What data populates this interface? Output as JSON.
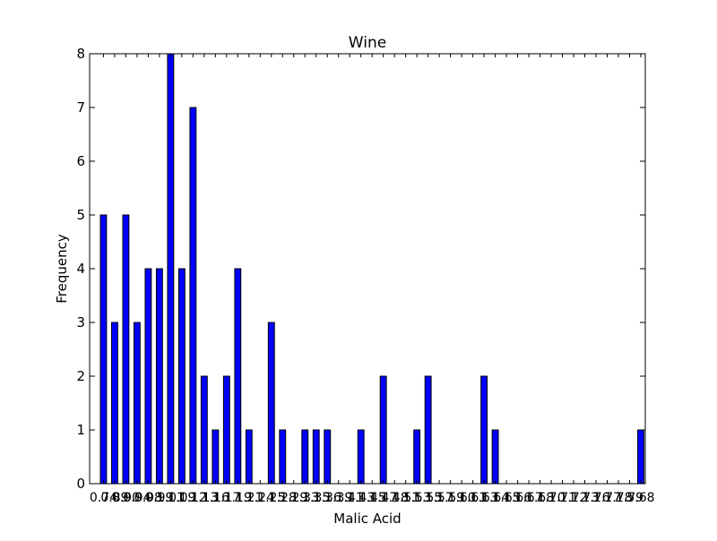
{
  "chart_data": {
    "type": "bar",
    "title": "Wine",
    "xlabel": "Malic Acid",
    "ylabel": "Frequency",
    "ylim": [
      0,
      8
    ],
    "y_ticks": [
      0,
      1,
      2,
      3,
      4,
      5,
      6,
      7,
      8
    ],
    "grid": false,
    "bar_color": "#0000ff",
    "edge_color": "#000000",
    "values": [
      5,
      3,
      5,
      3,
      4,
      4,
      8,
      4,
      7,
      2,
      1,
      2,
      4,
      1,
      0,
      3,
      1,
      0,
      1,
      1,
      1,
      0,
      0,
      1,
      0,
      2,
      0,
      0,
      1,
      2,
      0,
      0,
      0,
      0,
      2,
      1,
      0,
      0,
      0,
      0,
      0,
      0,
      0,
      0,
      0,
      0,
      0,
      0,
      1
    ],
    "categories": [
      "0.74",
      "0.89",
      "0.90",
      "0.94",
      "0.98",
      "0.99",
      "1.01",
      "1.09",
      "1.12",
      "1.13",
      "1.16",
      "1.17",
      "1.19",
      "1.21",
      "1.24",
      "1.25",
      "1.28",
      "1.29",
      "1.33",
      "1.35",
      "1.36",
      "1.39",
      "1.41",
      "1.43",
      "1.45",
      "1.47",
      "1.48",
      "1.51",
      "1.53",
      "1.55",
      "1.57",
      "1.59",
      "1.60",
      "1.61",
      "1.63",
      "1.64",
      "1.65",
      "1.66",
      "1.67",
      "1.68",
      "1.70",
      "1.71",
      "1.72",
      "1.73",
      "1.76",
      "1.77",
      "1.78",
      "1.79",
      "5.68"
    ]
  }
}
